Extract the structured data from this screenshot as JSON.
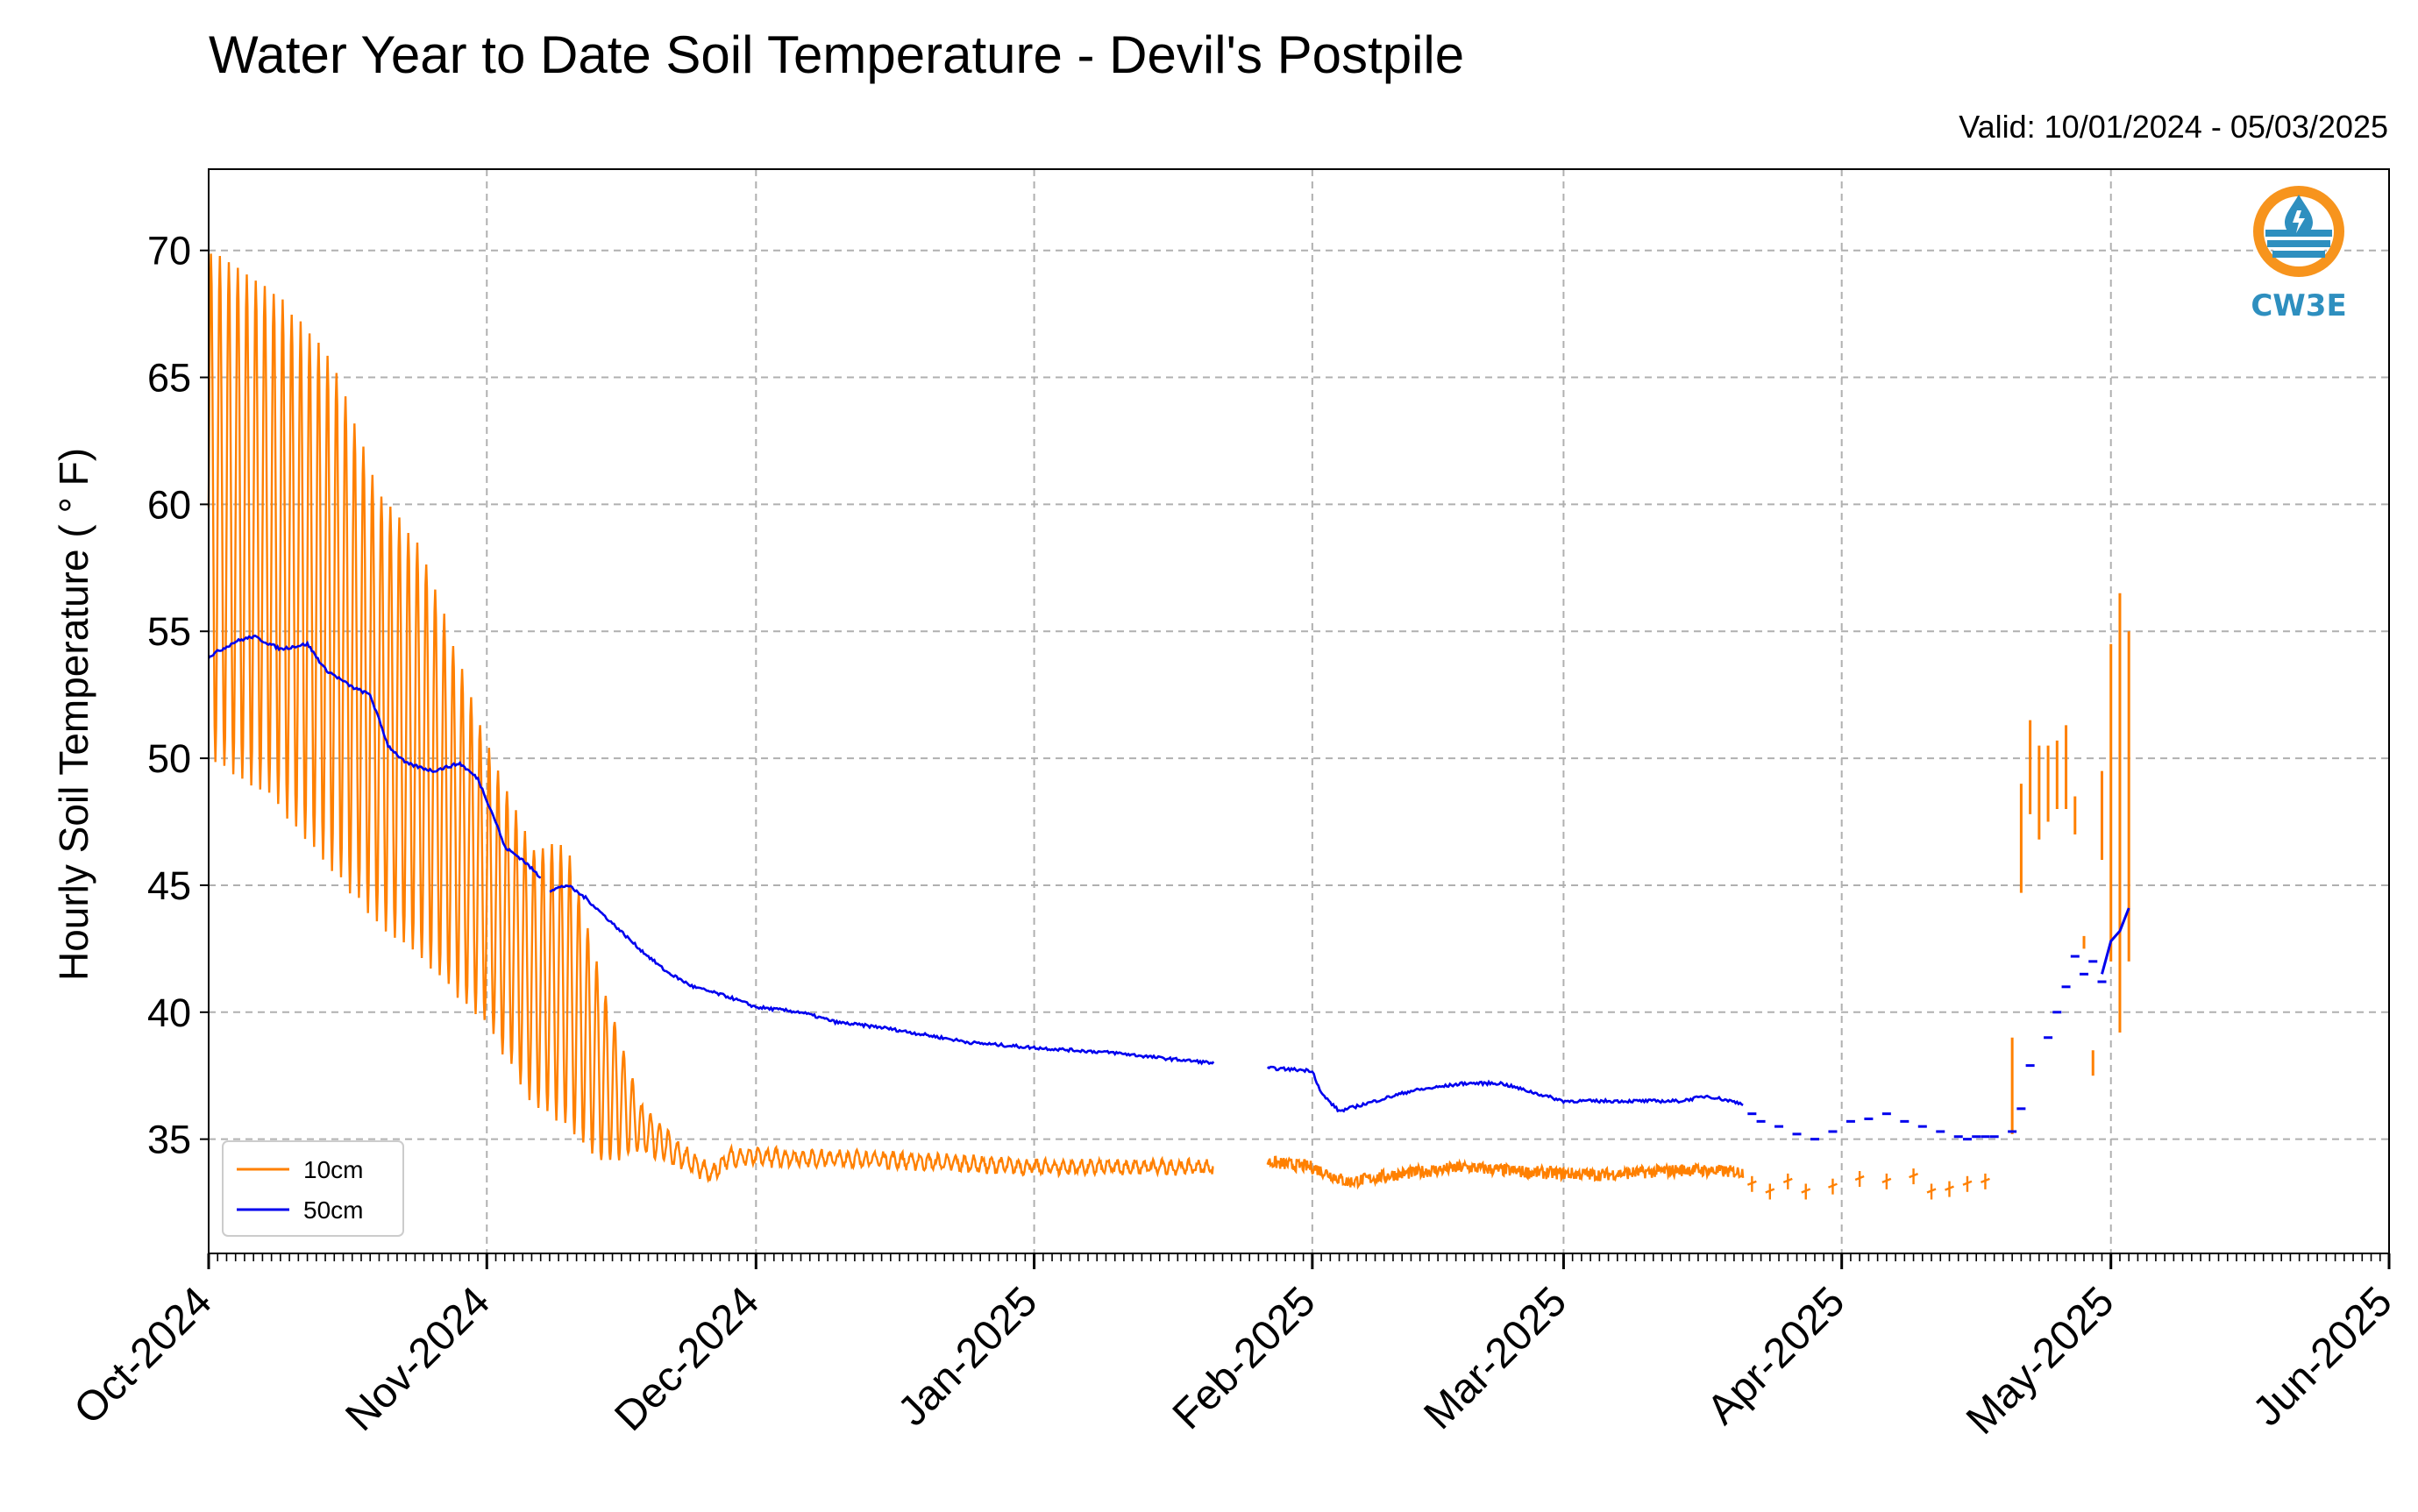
{
  "title": "Water Year to Date Soil Temperature - Devil's Postpile",
  "valid": "Valid: 10/01/2024 - 05/03/2025",
  "logo_text": "CW3E",
  "colors": {
    "c10": "#ff8000",
    "c50": "#0000ee",
    "grid": "#b0b0b0",
    "logo": "#2e8fbf",
    "logo_ring": "#f7941d"
  },
  "chart_data": {
    "type": "line",
    "title": "Water Year to Date Soil Temperature - Devil's Postpile",
    "ylabel": "Hourly Soil Temperature ( ° F)",
    "xlabel": "",
    "xlim": [
      "2024-10-01",
      "2025-06-01"
    ],
    "ylim": [
      30.5,
      73.2
    ],
    "yticks": [
      35,
      40,
      45,
      50,
      55,
      60,
      65,
      70
    ],
    "xticks": [
      "Oct-2024",
      "Nov-2024",
      "Dec-2024",
      "Jan-2025",
      "Feb-2025",
      "Mar-2025",
      "Apr-2025",
      "May-2025",
      "Jun-2025"
    ],
    "xtick_dates": [
      "2024-10-01",
      "2024-11-01",
      "2024-12-01",
      "2025-01-01",
      "2025-02-01",
      "2025-03-01",
      "2025-04-01",
      "2025-05-01",
      "2025-06-01"
    ],
    "grid": true,
    "legend_position": "lower-left",
    "series": [
      {
        "name": "10cm",
        "color": "#ff8000",
        "mean": [
          [
            "2024-10-01",
            60.0
          ],
          [
            "2024-10-08",
            58.5
          ],
          [
            "2024-10-15",
            55.5
          ],
          [
            "2024-10-20",
            52.0
          ],
          [
            "2024-10-25",
            50.0
          ],
          [
            "2024-11-01",
            45.0
          ],
          [
            "2024-11-06",
            41.5
          ],
          [
            "2024-11-10",
            41.0
          ],
          [
            "2024-11-14",
            37.5
          ],
          [
            "2024-11-18",
            35.5
          ],
          [
            "2024-11-22",
            34.5
          ],
          [
            "2024-11-26",
            33.6
          ],
          [
            "2024-11-28",
            34.3
          ],
          [
            "2024-12-01",
            34.3
          ],
          [
            "2024-12-15",
            34.2
          ],
          [
            "2025-01-01",
            33.9
          ],
          [
            "2025-01-20",
            33.9
          ]
        ],
        "swing": [
          [
            "2024-10-01",
            10.0
          ],
          [
            "2024-10-08",
            10.0
          ],
          [
            "2024-10-15",
            10.0
          ],
          [
            "2024-10-20",
            8.5
          ],
          [
            "2024-10-25",
            8.0
          ],
          [
            "2024-11-01",
            5.5
          ],
          [
            "2024-11-06",
            5.0
          ],
          [
            "2024-11-10",
            5.5
          ],
          [
            "2024-11-14",
            3.5
          ],
          [
            "2024-11-18",
            1.0
          ],
          [
            "2024-11-22",
            0.5
          ],
          [
            "2024-11-26",
            0.3
          ],
          [
            "2025-01-20",
            0.2
          ]
        ],
        "segments": [
          {
            "start": "2024-10-01",
            "end": "2025-01-21"
          },
          {
            "start": "2025-01-27",
            "end": "2025-03-21",
            "points": [
              [
                "2025-01-27",
                34.1
              ],
              [
                "2025-02-01",
                33.9
              ],
              [
                "2025-02-05",
                33.3
              ],
              [
                "2025-02-10",
                33.6
              ],
              [
                "2025-02-18",
                33.9
              ],
              [
                "2025-02-25",
                33.7
              ],
              [
                "2025-03-05",
                33.6
              ],
              [
                "2025-03-15",
                33.8
              ],
              [
                "2025-03-21",
                33.7
              ]
            ]
          }
        ],
        "sparse": [
          [
            "2025-03-22",
            33.2
          ],
          [
            "2025-03-24",
            32.9
          ],
          [
            "2025-03-26",
            33.3
          ],
          [
            "2025-03-28",
            32.9
          ],
          [
            "2025-03-31",
            33.1
          ],
          [
            "2025-04-03",
            33.4
          ],
          [
            "2025-04-06",
            33.3
          ],
          [
            "2025-04-09",
            33.5
          ],
          [
            "2025-04-11",
            32.9
          ],
          [
            "2025-04-13",
            33.0
          ],
          [
            "2025-04-15",
            33.2
          ],
          [
            "2025-04-17",
            33.3
          ]
        ],
        "spike_pairs": [
          [
            "2025-04-20",
            35.2,
            39.0
          ],
          [
            "2025-04-21",
            44.7,
            49.0
          ],
          [
            "2025-04-22",
            47.8,
            51.5
          ],
          [
            "2025-04-23",
            46.8,
            50.5
          ],
          [
            "2025-04-24",
            47.5,
            50.5
          ],
          [
            "2025-04-25",
            48.0,
            50.7
          ],
          [
            "2025-04-26",
            48.0,
            51.3
          ],
          [
            "2025-04-27",
            47.0,
            48.5
          ],
          [
            "2025-04-28",
            42.5,
            43.0
          ],
          [
            "2025-04-29",
            37.5,
            38.5
          ],
          [
            "2025-04-30",
            46.0,
            49.5
          ],
          [
            "2025-05-01",
            42.0,
            54.5
          ],
          [
            "2025-05-02",
            39.2,
            56.5
          ],
          [
            "2025-05-03",
            42.0,
            55.0
          ]
        ]
      },
      {
        "name": "50cm",
        "color": "#0000ee",
        "segments": [
          {
            "start": "2024-10-01",
            "end": "2024-11-07",
            "points": [
              [
                "2024-10-01",
                54.0
              ],
              [
                "2024-10-04",
                54.6
              ],
              [
                "2024-10-06",
                54.8
              ],
              [
                "2024-10-09",
                54.3
              ],
              [
                "2024-10-12",
                54.5
              ],
              [
                "2024-10-14",
                53.5
              ],
              [
                "2024-10-17",
                52.8
              ],
              [
                "2024-10-19",
                52.5
              ],
              [
                "2024-10-21",
                50.5
              ],
              [
                "2024-10-23",
                49.8
              ],
              [
                "2024-10-26",
                49.5
              ],
              [
                "2024-10-29",
                49.8
              ],
              [
                "2024-10-31",
                49.2
              ],
              [
                "2024-11-02",
                47.5
              ],
              [
                "2024-11-03",
                46.5
              ],
              [
                "2024-11-05",
                46.0
              ],
              [
                "2024-11-07",
                45.3
              ]
            ]
          },
          {
            "start": "2024-11-08",
            "end": "2025-01-21",
            "points": [
              [
                "2024-11-08",
                44.8
              ],
              [
                "2024-11-10",
                45.0
              ],
              [
                "2024-11-12",
                44.5
              ],
              [
                "2024-11-15",
                43.5
              ],
              [
                "2024-11-18",
                42.5
              ],
              [
                "2024-11-21",
                41.6
              ],
              [
                "2024-11-24",
                41.0
              ],
              [
                "2024-11-28",
                40.6
              ],
              [
                "2024-12-01",
                40.2
              ],
              [
                "2024-12-06",
                40.0
              ],
              [
                "2024-12-10",
                39.6
              ],
              [
                "2024-12-15",
                39.4
              ],
              [
                "2024-12-20",
                39.1
              ],
              [
                "2024-12-25",
                38.8
              ],
              [
                "2025-01-01",
                38.6
              ],
              [
                "2025-01-10",
                38.4
              ],
              [
                "2025-01-15",
                38.2
              ],
              [
                "2025-01-21",
                38.0
              ]
            ]
          },
          {
            "start": "2025-01-27",
            "end": "2025-03-21",
            "points": [
              [
                "2025-01-27",
                37.8
              ],
              [
                "2025-02-01",
                37.7
              ],
              [
                "2025-02-02",
                36.8
              ],
              [
                "2025-02-04",
                36.1
              ],
              [
                "2025-02-07",
                36.4
              ],
              [
                "2025-02-12",
                36.9
              ],
              [
                "2025-02-18",
                37.2
              ],
              [
                "2025-02-22",
                37.2
              ],
              [
                "2025-02-26",
                36.8
              ],
              [
                "2025-03-01",
                36.5
              ],
              [
                "2025-03-08",
                36.5
              ],
              [
                "2025-03-14",
                36.5
              ],
              [
                "2025-03-17",
                36.7
              ],
              [
                "2025-03-21",
                36.4
              ]
            ]
          }
        ],
        "sparse": [
          [
            "2025-03-22",
            36.0
          ],
          [
            "2025-03-23",
            35.7
          ],
          [
            "2025-03-25",
            35.5
          ],
          [
            "2025-03-27",
            35.2
          ],
          [
            "2025-03-29",
            35.0
          ],
          [
            "2025-03-31",
            35.3
          ],
          [
            "2025-04-02",
            35.7
          ],
          [
            "2025-04-04",
            35.8
          ],
          [
            "2025-04-06",
            36.0
          ],
          [
            "2025-04-08",
            35.7
          ],
          [
            "2025-04-10",
            35.5
          ],
          [
            "2025-04-12",
            35.3
          ],
          [
            "2025-04-14",
            35.1
          ],
          [
            "2025-04-15",
            35.0
          ],
          [
            "2025-04-16",
            35.1
          ],
          [
            "2025-04-17",
            35.1
          ],
          [
            "2025-04-18",
            35.1
          ],
          [
            "2025-04-20",
            35.3
          ],
          [
            "2025-04-21",
            36.2
          ],
          [
            "2025-04-22",
            37.9
          ],
          [
            "2025-04-24",
            39.0
          ],
          [
            "2025-04-25",
            40.0
          ],
          [
            "2025-04-26",
            41.0
          ],
          [
            "2025-04-27",
            42.2
          ],
          [
            "2025-04-28",
            41.5
          ],
          [
            "2025-04-29",
            42.0
          ],
          [
            "2025-04-30",
            41.2
          ]
        ],
        "tail": [
          [
            "2025-04-30",
            41.5
          ],
          [
            "2025-05-01",
            42.8
          ],
          [
            "2025-05-02",
            43.2
          ],
          [
            "2025-05-03",
            44.1
          ]
        ]
      }
    ]
  }
}
